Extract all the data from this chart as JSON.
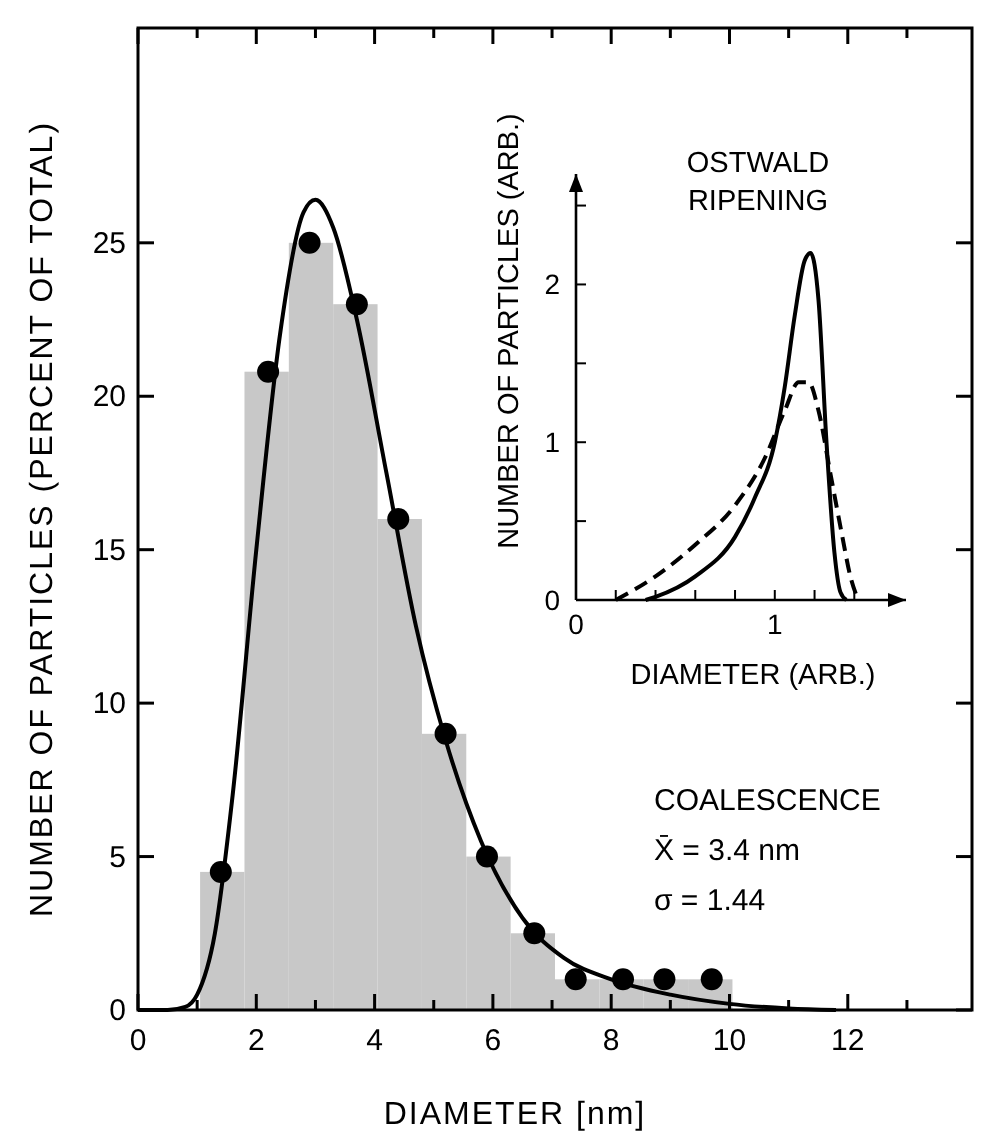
{
  "chart_data": [
    {
      "type": "histogram",
      "xlabel": "DIAMETER [nm]",
      "ylabel": "NUMBER OF PARTICLES (PERCENT OF TOTAL)",
      "xlim": [
        0,
        14.1
      ],
      "ylim": [
        0,
        32
      ],
      "xticks": [
        0,
        {
          "value": 1,
          "label": null
        },
        2,
        {
          "value": 3,
          "label": null
        },
        4,
        {
          "value": 5,
          "label": null
        },
        6,
        {
          "value": 7,
          "label": null
        },
        8,
        {
          "value": 9,
          "label": null
        },
        10,
        {
          "value": 11,
          "label": null
        },
        12,
        {
          "value": 13,
          "label": null
        }
      ],
      "yticks": [
        0,
        5,
        10,
        15,
        20,
        25
      ],
      "series": [
        {
          "type": "histogram",
          "color": "#c8c8c8",
          "bins": [
            1.05,
            1.8,
            2.55,
            3.3,
            4.05,
            4.8,
            5.55,
            6.3,
            7.05,
            7.8,
            8.55,
            9.3,
            10.05
          ],
          "values": [
            4.5,
            20.8,
            25,
            23,
            16,
            9,
            5,
            2.5,
            1,
            1,
            1,
            1
          ]
        },
        {
          "type": "scatter",
          "color": "#000000",
          "marker": "circle",
          "x": [
            1.4,
            2.2,
            2.9,
            3.7,
            4.4,
            5.2,
            5.9,
            6.7,
            7.4,
            8.2,
            8.9,
            9.7
          ],
          "values": [
            4.5,
            20.8,
            25,
            23,
            16,
            9,
            5,
            2.5,
            1,
            1,
            1,
            1
          ]
        },
        {
          "type": "line",
          "color": "#000000",
          "line_style": "solid",
          "x": [
            0,
            0.5,
            0.8,
            1.0,
            1.3,
            1.6,
            2.0,
            2.4,
            2.8,
            3.0,
            3.3,
            3.7,
            4.2,
            4.7,
            5.2,
            5.8,
            6.5,
            7.2,
            8.0,
            9.0,
            10.0,
            11.0,
            11.8
          ],
          "values": [
            0,
            0,
            0.1,
            0.5,
            2.5,
            7,
            15,
            22,
            26,
            26.4,
            25.5,
            22.5,
            17.5,
            12.5,
            8.8,
            5.5,
            3,
            1.7,
            1,
            0.5,
            0.2,
            0.05,
            0
          ]
        }
      ],
      "annotations": [
        "COALESCENCE",
        "X̄ = 3.4 nm",
        "σ = 1.44"
      ]
    },
    {
      "type": "line",
      "title": "OSTWALD RIPENING",
      "xlabel": "DIAMETER (ARB.)",
      "ylabel": "NUMBER OF PARTICLES (ARB.)",
      "xlim": [
        0,
        1.66
      ],
      "ylim": [
        0,
        2.7
      ],
      "xticks": [
        0,
        {
          "value": 0.2,
          "label": null
        },
        {
          "value": 0.4,
          "label": null
        },
        {
          "value": 0.6,
          "label": null
        },
        {
          "value": 0.8,
          "label": null
        },
        1,
        {
          "value": 1.2,
          "label": null
        },
        {
          "value": 1.4,
          "label": null
        }
      ],
      "yticks": [
        0,
        {
          "value": 0.5,
          "label": null
        },
        1,
        {
          "value": 1.5,
          "label": null
        },
        2,
        {
          "value": 2.5,
          "label": null
        }
      ],
      "series": [
        {
          "color": "#000000",
          "line_style": "solid",
          "x": [
            0.35,
            0.4,
            0.6,
            0.8,
            0.9,
            1.0,
            1.05,
            1.1,
            1.15,
            1.18,
            1.22,
            1.26,
            1.3,
            1.33,
            1.36
          ],
          "values": [
            0,
            0.02,
            0.15,
            0.4,
            0.65,
            1.0,
            1.35,
            1.8,
            2.15,
            2.2,
            1.9,
            1.0,
            0.3,
            0.05,
            0
          ]
        },
        {
          "color": "#000000",
          "line_style": "dashed",
          "x": [
            0.2,
            0.4,
            0.6,
            0.8,
            0.95,
            1.05,
            1.12,
            1.17,
            1.22,
            1.28,
            1.34,
            1.38,
            1.42
          ],
          "values": [
            0,
            0.15,
            0.35,
            0.6,
            0.9,
            1.2,
            1.38,
            1.38,
            1.2,
            0.8,
            0.4,
            0.15,
            0
          ]
        }
      ]
    }
  ]
}
